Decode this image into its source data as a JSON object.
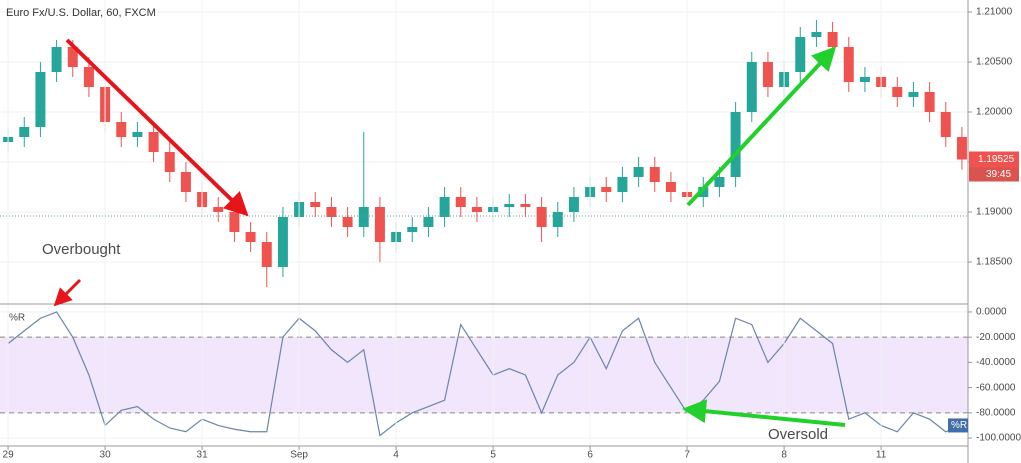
{
  "chart_data": [
    {
      "type": "candlestick",
      "title": "Euro Fx/U.S. Dollar, 60, FXCM",
      "x": [
        0,
        4,
        8,
        12,
        16,
        20,
        24,
        28,
        32,
        36,
        40,
        44,
        48,
        52,
        56,
        60,
        64,
        68,
        72,
        76,
        80,
        84,
        88,
        92,
        96,
        100,
        104,
        108,
        112,
        116,
        120,
        124,
        128,
        132,
        136,
        140,
        144,
        148,
        152,
        156,
        160,
        164,
        168,
        172,
        176,
        180,
        184,
        188,
        192,
        196,
        200,
        204,
        208,
        212,
        216,
        220,
        224,
        228,
        232,
        236
      ],
      "open": [
        1.197,
        1.1975,
        1.1985,
        1.204,
        1.2065,
        1.2045,
        1.2025,
        1.199,
        1.1975,
        1.198,
        1.196,
        1.194,
        1.192,
        1.1905,
        1.19,
        1.188,
        1.187,
        1.1845,
        1.1895,
        1.191,
        1.1905,
        1.1895,
        1.1885,
        1.1905,
        1.187,
        1.188,
        1.1885,
        1.1895,
        1.1915,
        1.1905,
        1.19,
        1.1905,
        1.1908,
        1.1905,
        1.1885,
        1.19,
        1.1915,
        1.1925,
        1.192,
        1.1935,
        1.1945,
        1.193,
        1.192,
        1.1915,
        1.1925,
        1.1935,
        1.2,
        1.205,
        1.2025,
        1.204,
        1.2075,
        1.208,
        1.2065,
        1.203,
        1.2035,
        1.2025,
        1.2015,
        1.202,
        1.2,
        1.1975
      ],
      "high": [
        1.1985,
        1.1995,
        1.205,
        1.2072,
        1.2072,
        1.2055,
        1.2035,
        1.2,
        1.199,
        1.199,
        1.197,
        1.195,
        1.193,
        1.1915,
        1.191,
        1.189,
        1.188,
        1.1905,
        1.192,
        1.192,
        1.1915,
        1.1905,
        1.198,
        1.1915,
        1.189,
        1.1895,
        1.1905,
        1.1925,
        1.1925,
        1.1915,
        1.1915,
        1.1918,
        1.1918,
        1.1915,
        1.191,
        1.1925,
        1.1935,
        1.1935,
        1.1945,
        1.1955,
        1.1955,
        1.194,
        1.193,
        1.1935,
        1.1945,
        1.201,
        1.206,
        1.206,
        1.205,
        1.2085,
        1.2092,
        1.209,
        1.2075,
        1.2045,
        1.2045,
        1.2035,
        1.203,
        1.203,
        1.201,
        1.1985
      ],
      "low": [
        1.196,
        1.1965,
        1.1975,
        1.203,
        1.2035,
        1.2015,
        1.198,
        1.1965,
        1.1965,
        1.195,
        1.193,
        1.191,
        1.1895,
        1.189,
        1.187,
        1.186,
        1.1825,
        1.1835,
        1.1885,
        1.1895,
        1.1885,
        1.1875,
        1.1875,
        1.185,
        1.186,
        1.187,
        1.1875,
        1.1885,
        1.1895,
        1.189,
        1.189,
        1.1895,
        1.1895,
        1.187,
        1.1875,
        1.189,
        1.1905,
        1.191,
        1.191,
        1.1925,
        1.192,
        1.191,
        1.1905,
        1.1905,
        1.1915,
        1.1925,
        1.199,
        1.2015,
        1.2015,
        1.203,
        1.2065,
        1.2055,
        1.202,
        1.202,
        1.2015,
        1.2005,
        1.2005,
        1.199,
        1.1965,
        1.19425
      ],
      "close": [
        1.1975,
        1.1985,
        1.204,
        1.2065,
        1.2045,
        1.2025,
        1.199,
        1.1975,
        1.198,
        1.196,
        1.194,
        1.192,
        1.1905,
        1.19,
        1.188,
        1.187,
        1.1845,
        1.1895,
        1.191,
        1.1905,
        1.1895,
        1.1885,
        1.1905,
        1.187,
        1.188,
        1.1885,
        1.1895,
        1.1915,
        1.1905,
        1.19,
        1.1905,
        1.1908,
        1.1905,
        1.1885,
        1.19,
        1.1915,
        1.1925,
        1.192,
        1.1935,
        1.1945,
        1.193,
        1.192,
        1.1915,
        1.1925,
        1.1935,
        1.2,
        1.205,
        1.2025,
        1.204,
        1.2075,
        1.208,
        1.2065,
        1.203,
        1.2035,
        1.2025,
        1.2015,
        1.202,
        1.2,
        1.1975,
        1.19525
      ],
      "up_color": "#26a69a",
      "down_color": "#ef5350",
      "xlim": [
        -2,
        237.5
      ],
      "ylim": [
        1.1809,
        1.2112
      ],
      "yticks": [
        {
          "value": 1.185,
          "label": "1.18500"
        },
        {
          "value": 1.19,
          "label": "1.19000"
        },
        {
          "value": 1.195,
          "label": "1.19500"
        },
        {
          "value": 1.2,
          "label": "1.20000"
        },
        {
          "value": 1.205,
          "label": "1.20500"
        },
        {
          "value": 1.21,
          "label": "1.21000"
        }
      ],
      "last_price_label": "1.19525",
      "countdown": "39:45",
      "grid": true
    },
    {
      "type": "line",
      "x": [
        0,
        4,
        8,
        12,
        16,
        20,
        24,
        28,
        32,
        36,
        40,
        44,
        48,
        52,
        56,
        60,
        64,
        68,
        72,
        76,
        80,
        84,
        88,
        92,
        96,
        100,
        104,
        108,
        112,
        116,
        120,
        124,
        128,
        132,
        136,
        140,
        144,
        148,
        152,
        156,
        160,
        164,
        168,
        172,
        176,
        180,
        184,
        188,
        192,
        196,
        200,
        204,
        208,
        212,
        216,
        220,
        224,
        228,
        232,
        236
      ],
      "series": [
        {
          "name": "%R",
          "color": "#6a86a8",
          "values": [
            -25,
            -15,
            -5,
            0,
            -20,
            -50,
            -90,
            -78,
            -75,
            -85,
            -92,
            -95,
            -85,
            -90,
            -93,
            -95,
            -95,
            -20,
            -5,
            -15,
            -30,
            -40,
            -30,
            -98,
            -88,
            -80,
            -75,
            -70,
            -10,
            -30,
            -50,
            -45,
            -50,
            -80,
            -50,
            -40,
            -20,
            -45,
            -15,
            -5,
            -40,
            -60,
            -80,
            -70,
            -55,
            -5,
            -10,
            -40,
            -25,
            -5,
            -15,
            -25,
            -85,
            -80,
            -90,
            -95,
            -80,
            -85,
            -95,
            -90
          ]
        }
      ],
      "xlim": [
        -2,
        237.5
      ],
      "ylim": [
        -105.5,
        5.5
      ],
      "xticks": [
        {
          "value": 0,
          "label": "29"
        },
        {
          "value": 24,
          "label": "30"
        },
        {
          "value": 48,
          "label": "31"
        },
        {
          "value": 72,
          "label": "Sep"
        },
        {
          "value": 96,
          "label": "4"
        },
        {
          "value": 120,
          "label": "5"
        },
        {
          "value": 144,
          "label": "6"
        },
        {
          "value": 168,
          "label": "7"
        },
        {
          "value": 192,
          "label": "8"
        },
        {
          "value": 216,
          "label": "11"
        }
      ],
      "yticks": [
        {
          "value": 0,
          "label": "0.0000"
        },
        {
          "value": -20,
          "label": "-20.0000"
        },
        {
          "value": -40,
          "label": "-40.0000"
        },
        {
          "value": -60,
          "label": "-60.0000"
        },
        {
          "value": -80,
          "label": "-80.0000"
        },
        {
          "value": -100,
          "label": "-100.0000"
        }
      ],
      "band": [
        -80,
        -20
      ],
      "band_color": "#f1e6fb",
      "annotations": [
        "Overbought",
        "Oversold"
      ],
      "annotation_color": "#f0892a",
      "grid": true
    }
  ]
}
